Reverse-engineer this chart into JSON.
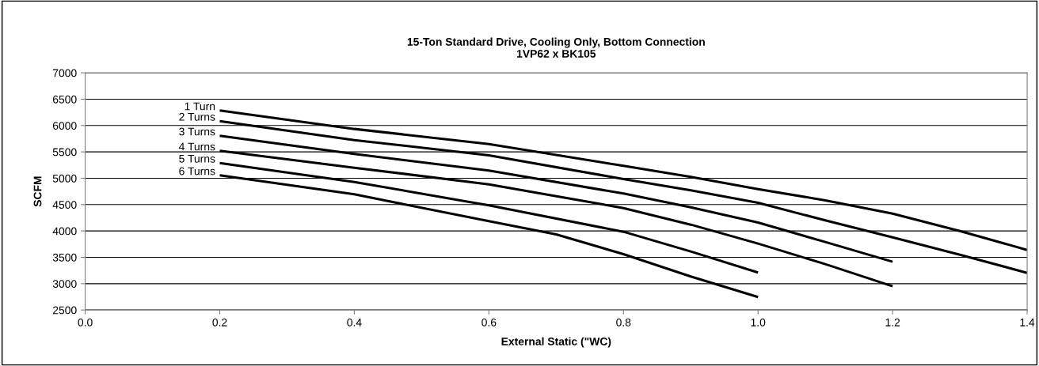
{
  "chart_data": {
    "type": "line",
    "title": "15-Ton Standard Drive, Cooling Only, Bottom Connection\n1VP62 x BK105",
    "xlabel": "External Static (\"WC)",
    "ylabel": "SCFM",
    "series": [
      {
        "name": "1 Turn",
        "color": "#000000",
        "x": [
          0.2,
          0.4,
          0.6,
          0.8,
          0.9,
          1.0,
          1.1,
          1.2,
          1.3,
          1.4
        ],
        "values": [
          6285,
          5935,
          5650,
          5235,
          5025,
          4795,
          4580,
          4330,
          4000,
          3640
        ]
      },
      {
        "name": "2 Turns",
        "color": "#000000",
        "x": [
          0.2,
          0.4,
          0.6,
          0.8,
          0.9,
          1.0,
          1.1,
          1.2,
          1.3,
          1.4
        ],
        "values": [
          6085,
          5725,
          5435,
          4985,
          4770,
          4535,
          4200,
          3880,
          3550,
          3205
        ]
      },
      {
        "name": "3 Turns",
        "color": "#000000",
        "x": [
          0.2,
          0.4,
          0.6,
          0.8,
          0.9,
          1.0,
          1.1,
          1.2
        ],
        "values": [
          5805,
          5460,
          5145,
          4710,
          4450,
          4160,
          3790,
          3415
        ]
      },
      {
        "name": "4 Turns",
        "color": "#000000",
        "x": [
          0.2,
          0.4,
          0.6,
          0.8,
          0.9,
          1.0,
          1.1,
          1.2
        ],
        "values": [
          5520,
          5200,
          4885,
          4435,
          4120,
          3760,
          3370,
          2950
        ]
      },
      {
        "name": "5 Turns",
        "color": "#000000",
        "x": [
          0.2,
          0.4,
          0.6,
          0.8,
          0.9,
          1.0
        ],
        "values": [
          5290,
          4930,
          4485,
          3985,
          3610,
          3210
        ]
      },
      {
        "name": "6 Turns",
        "color": "#000000",
        "x": [
          0.2,
          0.4,
          0.6,
          0.7,
          0.8,
          0.9,
          1.0
        ],
        "values": [
          5055,
          4695,
          4185,
          3935,
          3560,
          3135,
          2745
        ]
      }
    ],
    "xlim": [
      0.0,
      1.4
    ],
    "xticks": [
      {
        "value": 0,
        "label": "0.0"
      },
      0.2,
      0.4,
      0.6,
      0.8,
      {
        "value": 1,
        "label": "1.0"
      },
      1.2,
      1.4
    ],
    "ylim": [
      2500,
      7000
    ],
    "yticks": [
      2500,
      3000,
      3500,
      4000,
      4500,
      5000,
      5500,
      6000,
      6500,
      7000
    ],
    "grid": "y",
    "legend": false,
    "marker": "none",
    "line_style": "solid"
  }
}
